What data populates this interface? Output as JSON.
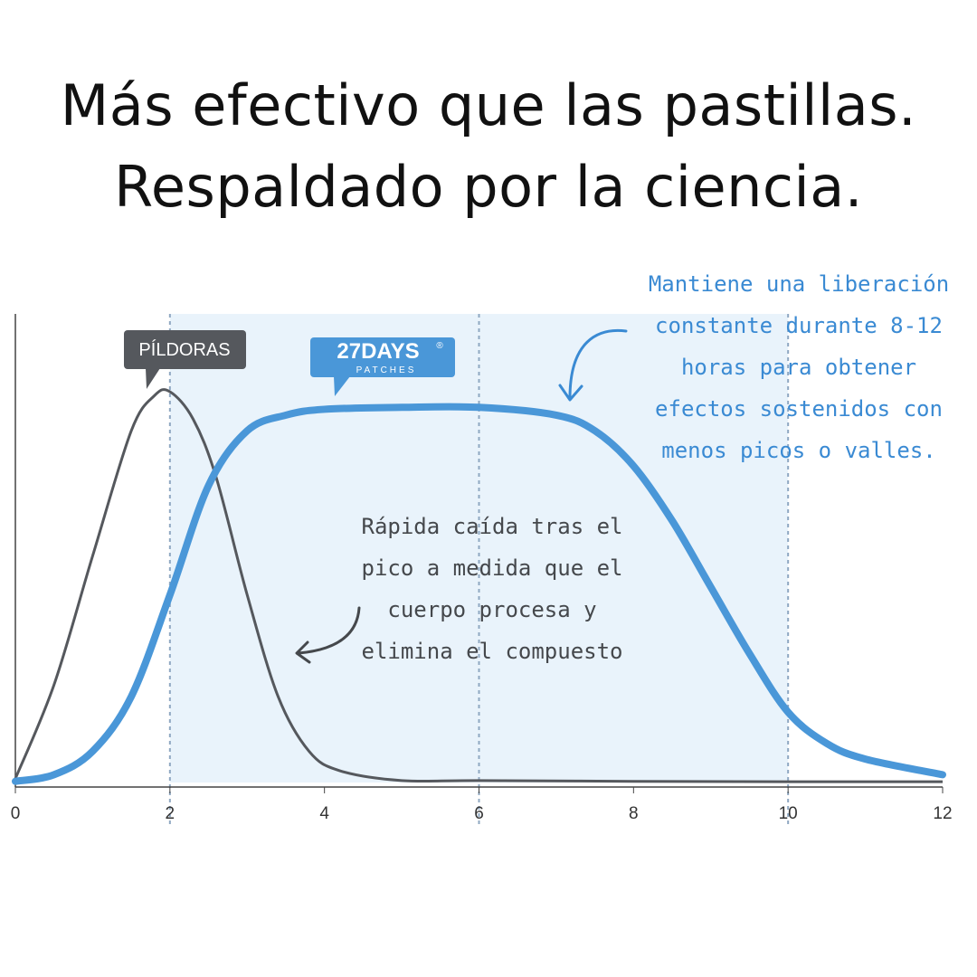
{
  "headline": {
    "line1": "Más efectivo que las pastillas.",
    "line2": "Respaldado por la ciencia."
  },
  "colors": {
    "pill_line": "#55585d",
    "patch_line": "#4a97d8",
    "shaded_region": "#e9f3fb",
    "grid_dash": "#8fa8c2",
    "annotation_blue": "#3a8ad3",
    "annotation_dark": "#45484c",
    "pill_badge": "#55585d",
    "patch_badge": "#4a97d8"
  },
  "chart_data": {
    "type": "line",
    "title": "",
    "xlabel": "",
    "ylabel": "",
    "xlim": [
      0,
      12
    ],
    "ylim": [
      0,
      1
    ],
    "x_ticks": [
      0,
      2,
      4,
      6,
      8,
      10,
      12
    ],
    "x_tick_labels": [
      "0",
      "2",
      "4",
      "6",
      "8",
      "10",
      "12"
    ],
    "dashed_gridlines_x": [
      2,
      6,
      10
    ],
    "shaded_x_range": [
      2,
      10
    ],
    "series": [
      {
        "label": "PÍLDORAS",
        "color": "#55585d",
        "x": [
          0,
          0.5,
          1,
          1.5,
          1.8,
          2,
          2.3,
          2.6,
          3,
          3.4,
          3.8,
          4.2,
          5,
          6,
          8,
          10,
          12
        ],
        "y": [
          0.01,
          0.25,
          0.58,
          0.9,
          0.99,
          1.0,
          0.93,
          0.78,
          0.48,
          0.22,
          0.08,
          0.03,
          0.005,
          0.005,
          0.003,
          0.002,
          0.002
        ]
      },
      {
        "label": "27DAYS PATCHES",
        "color": "#4a97d8",
        "x": [
          0,
          0.5,
          1,
          1.5,
          2,
          2.5,
          3,
          3.5,
          4,
          5,
          6,
          7,
          7.5,
          8,
          8.5,
          9,
          9.5,
          10,
          10.5,
          11,
          12
        ],
        "y": [
          0.003,
          0.02,
          0.08,
          0.22,
          0.48,
          0.76,
          0.9,
          0.94,
          0.955,
          0.96,
          0.96,
          0.94,
          0.9,
          0.81,
          0.67,
          0.5,
          0.33,
          0.18,
          0.1,
          0.06,
          0.02
        ]
      }
    ]
  },
  "badges": {
    "pill": "PÍLDORAS",
    "patch_brand": "27DAYS",
    "patch_registered": "®",
    "patch_sub": "PATCHES"
  },
  "annotations": {
    "patch_note": [
      "Mantiene una liberación",
      "constante durante 8-12",
      "horas para obtener",
      "efectos sostenidos con",
      "menos picos o valles."
    ],
    "pill_note": [
      "Rápida caída tras el",
      "pico a medida que el",
      "cuerpo procesa y",
      "elimina el compuesto"
    ]
  }
}
